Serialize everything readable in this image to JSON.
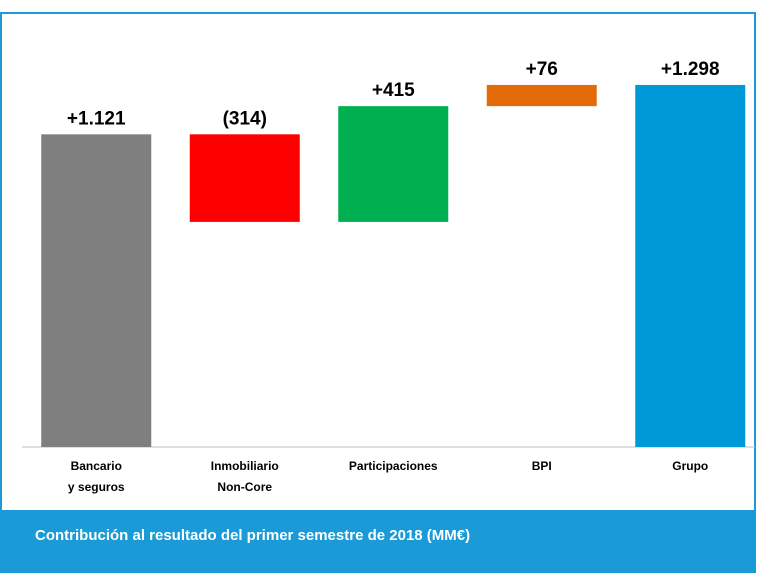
{
  "chart_data": {
    "type": "waterfall",
    "title": "Contribución al resultado del primer semestre de 2018 (MM€)",
    "categories": [
      [
        "Bancario",
        "y seguros"
      ],
      [
        "Inmobiliario",
        "Non-Core"
      ],
      [
        "Participaciones"
      ],
      [
        "BPI"
      ],
      [
        "Grupo"
      ]
    ],
    "values": [
      1121,
      -314,
      415,
      76,
      1298
    ],
    "value_labels": [
      "+1.121",
      "(314)",
      "+415",
      "+76",
      "+1.298"
    ],
    "measure": [
      "relative",
      "relative",
      "relative",
      "relative",
      "total"
    ],
    "colors": [
      "#7f7f7f",
      "#ff0000",
      "#00b050",
      "#e36c09",
      "#0099d8"
    ],
    "ylim": [
      0,
      1400
    ]
  }
}
